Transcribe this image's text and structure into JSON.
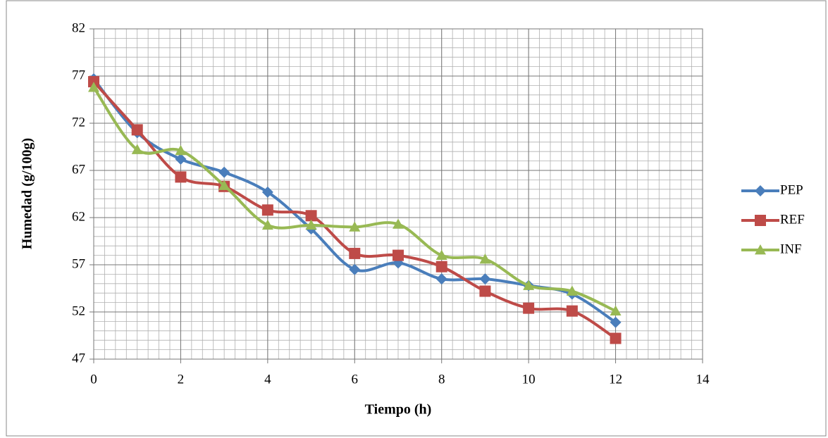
{
  "chart_data": {
    "type": "line",
    "x_label": "Tiempo (h)",
    "y_label": "Humedad (g/100g)",
    "x": [
      0,
      1,
      2,
      3,
      4,
      5,
      6,
      7,
      8,
      9,
      10,
      11,
      12
    ],
    "series": [
      {
        "name": "PEP",
        "color": "#4a7ebb",
        "marker": "diamond",
        "values": [
          76.7,
          71.0,
          68.2,
          66.8,
          64.7,
          60.8,
          56.5,
          57.2,
          55.5,
          55.5,
          54.8,
          53.9,
          50.9
        ]
      },
      {
        "name": "REF",
        "color": "#be4b48",
        "marker": "square",
        "values": [
          76.4,
          71.3,
          66.3,
          65.3,
          62.8,
          62.2,
          58.2,
          58.0,
          56.8,
          54.2,
          52.4,
          52.1,
          49.2
        ]
      },
      {
        "name": "INF",
        "color": "#98b954",
        "marker": "triangle",
        "values": [
          75.8,
          69.2,
          69.1,
          65.4,
          61.2,
          61.2,
          61.0,
          61.3,
          58.0,
          57.6,
          54.8,
          54.2,
          52.1
        ]
      }
    ],
    "xlim": [
      0,
      14
    ],
    "xticks": [
      0,
      2,
      4,
      6,
      8,
      10,
      12,
      14
    ],
    "ylim": [
      47,
      82
    ],
    "yticks": [
      47,
      52,
      57,
      62,
      67,
      72,
      77,
      82
    ],
    "grid": true,
    "minor_grid": true,
    "smooth": true,
    "legend": "right"
  }
}
